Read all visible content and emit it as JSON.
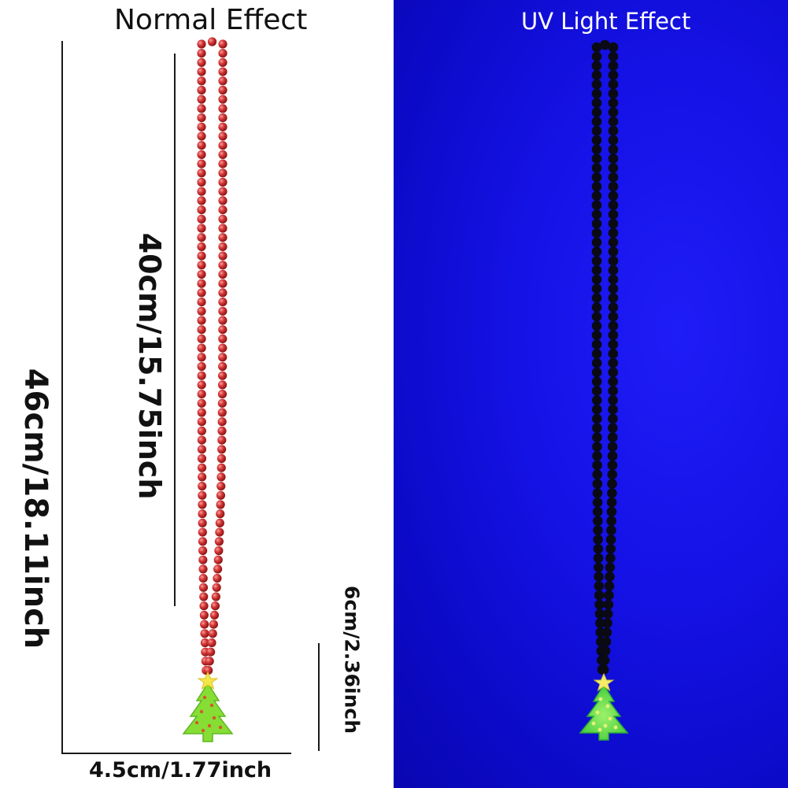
{
  "titles": {
    "normal": "Normal Effect",
    "uv": "UV Light Effect"
  },
  "dimensions": {
    "total_length": "46cm/18.11inch",
    "chain_length": "40cm/15.75inch",
    "pendant_height": "6cm/2.36inch",
    "pendant_width": "4.5cm/1.77inch"
  },
  "colors": {
    "uv_background": "#1512e6",
    "normal_beads": "#d42a2a",
    "uv_beads": "#0a0a14",
    "tree_green": "#7fe02a",
    "tree_glow": "#64e64a",
    "star_yellow": "#f2e53a"
  }
}
